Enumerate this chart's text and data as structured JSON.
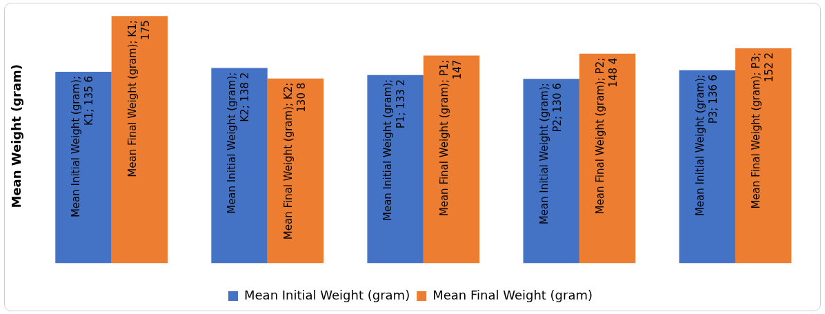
{
  "chart_data": {
    "type": "bar",
    "ylabel": "Mean Weight (gram)",
    "categories": [
      null,
      null,
      null,
      null,
      null
    ],
    "legend": "bottom",
    "grid": false,
    "series": [
      {
        "name": "Mean Initial Weight (gram)",
        "color": "#4472c4",
        "values": [
          135.6,
          138.2,
          133.2,
          130.6,
          136.6
        ],
        "value_labels": [
          "Mean Initial Weight (gram); K1; 135 6",
          "Mean Initial Weight (gram); K2; 138 2",
          "Mean Initial Weight (gram); P1; 133 2",
          "Mean Initial Weight (gram); P2; 130 6",
          "Mean Initial Weight (gram); P3; 136 6"
        ]
      },
      {
        "name": "Mean Final Weight (gram)",
        "color": "#ed7d31",
        "values": [
          175,
          130.8,
          147,
          148.4,
          152.2
        ],
        "value_labels": [
          "Mean Final Weight (gram); K1; 175",
          "Mean Final Weight (gram); K2; 130 8",
          "Mean Final Weight (gram); P1; 147",
          "Mean Final Weight (gram); P2; 148 4",
          "Mean Final Weight (gram); P3; 152 2"
        ]
      }
    ]
  }
}
